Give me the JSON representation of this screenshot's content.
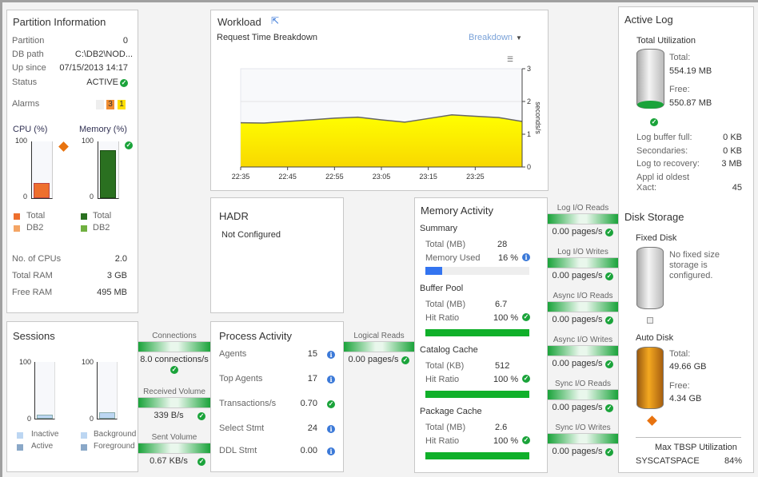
{
  "partition": {
    "title": "Partition Information",
    "rows": [
      {
        "label": "Partition",
        "value": "0"
      },
      {
        "label": "DB path",
        "value": "C:\\DB2\\NOD..."
      },
      {
        "label": "Up since",
        "value": "07/15/2013 14:17"
      },
      {
        "label": "Status",
        "value": "ACTIVE"
      }
    ],
    "alarms_label": "Alarms",
    "alarms": [
      "",
      "3",
      "1"
    ],
    "cpu": {
      "title": "CPU (%)",
      "max": "100",
      "min": "0",
      "total_percent": 27,
      "legend": [
        "Total",
        "DB2"
      ]
    },
    "memory": {
      "title": "Memory (%)",
      "max": "100",
      "min": "0",
      "total_percent": 84,
      "legend": [
        "Total",
        "DB2"
      ]
    },
    "stats": [
      {
        "label": "No. of CPUs",
        "value": "2.0"
      },
      {
        "label": "Total RAM",
        "value": "3 GB"
      },
      {
        "label": "Free RAM",
        "value": "495 MB"
      }
    ]
  },
  "workload": {
    "title": "Workload",
    "subtitle": "Request Time Breakdown",
    "dropdown": "Breakdown"
  },
  "chart_data": {
    "type": "area",
    "title": "Request Time Breakdown",
    "ylabel": "seconds/s",
    "ylim": [
      0,
      3
    ],
    "yticks": [
      "0",
      "1",
      "2",
      "3"
    ],
    "x": [
      "22:35",
      "22:40",
      "22:45",
      "22:50",
      "22:55",
      "23:00",
      "23:05",
      "23:10",
      "23:15",
      "23:20",
      "23:25",
      "23:30",
      "23:35"
    ],
    "xticks": [
      "22:35",
      "22:45",
      "22:55",
      "23:05",
      "23:15",
      "23:25"
    ],
    "values": [
      1.35,
      1.34,
      1.39,
      1.44,
      1.49,
      1.52,
      1.44,
      1.37,
      1.48,
      1.59,
      1.55,
      1.51,
      1.39
    ],
    "color": "#ffee00"
  },
  "hadr": {
    "title": "HADR",
    "status": "Not Configured"
  },
  "memact": {
    "title": "Memory Activity",
    "summary": {
      "title": "Summary",
      "total_label": "Total (MB)",
      "total": "28",
      "used_label": "Memory Used",
      "used": "16 %",
      "used_percent": 16
    },
    "sections": [
      {
        "title": "Buffer Pool",
        "total_label": "Total (MB)",
        "total": "6.7",
        "ratio_label": "Hit Ratio",
        "ratio": "100 %"
      },
      {
        "title": "Catalog Cache",
        "total_label": "Total (KB)",
        "total": "512",
        "ratio_label": "Hit Ratio",
        "ratio": "100 %"
      },
      {
        "title": "Package Cache",
        "total_label": "Total (MB)",
        "total": "2.6",
        "ratio_label": "Hit Ratio",
        "ratio": "100 %"
      }
    ]
  },
  "io": [
    {
      "label": "Log I/O Reads",
      "value": "0.00 pages/s"
    },
    {
      "label": "Log I/O Writes",
      "value": "0.00 pages/s"
    },
    {
      "label": "Async I/O Reads",
      "value": "0.00 pages/s"
    },
    {
      "label": "Async I/O Writes",
      "value": "0.00 pages/s"
    },
    {
      "label": "Sync I/O Reads",
      "value": "0.00 pages/s"
    },
    {
      "label": "Sync I/O Writes",
      "value": "0.00 pages/s"
    }
  ],
  "logical_reads": {
    "label": "Logical Reads",
    "value": "0.00 pages/s"
  },
  "sessions": {
    "title": "Sessions",
    "max": "100",
    "min": "0",
    "legend1": [
      "Inactive",
      "Active"
    ],
    "legend2": [
      "Background",
      "Foreground"
    ]
  },
  "flows": [
    {
      "label": "Connections",
      "value": "8.0 connections/s"
    },
    {
      "label": "Received Volume",
      "value": "339 B/s"
    },
    {
      "label": "Sent Volume",
      "value": "0.67 KB/s"
    }
  ],
  "process": {
    "title": "Process Activity",
    "rows": [
      {
        "label": "Agents",
        "value": "15"
      },
      {
        "label": "Top Agents",
        "value": "17"
      },
      {
        "label": "Transactions/s",
        "value": "0.70"
      },
      {
        "label": "Select Stmt",
        "value": "24"
      },
      {
        "label": "DDL Stmt",
        "value": "0.00"
      }
    ]
  },
  "activelog": {
    "title": "Active Log",
    "util": "Total Utilization",
    "total_label": "Total:",
    "total": "554.19 MB",
    "free_label": "Free:",
    "free": "550.87 MB",
    "rows": [
      {
        "label": "Log buffer full:",
        "value": "0 KB"
      },
      {
        "label": "Secondaries:",
        "value": "0 KB"
      },
      {
        "label": "Log to recovery:",
        "value": "3 MB"
      },
      {
        "label": "Appl id oldest Xact:",
        "value": "45"
      }
    ]
  },
  "disk": {
    "title": "Disk Storage",
    "fixed_title": "Fixed Disk",
    "fixed_msg": "No fixed size storage is configured.",
    "auto_title": "Auto Disk",
    "total_label": "Total:",
    "total": "49.66 GB",
    "free_label": "Free:",
    "free": "4.34 GB",
    "max_label": "Max TBSP Utilization",
    "tbsp": "SYSCATSPACE",
    "tbsp_value": "84%"
  }
}
